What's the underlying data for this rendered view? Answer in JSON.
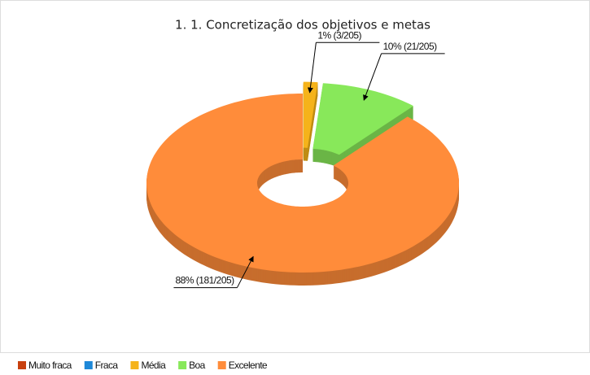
{
  "chart_data": {
    "type": "donut3d",
    "title": "1. 1. Concretização dos objetivos e metas",
    "categories": [
      "Muito fraca",
      "Fraca",
      "Média",
      "Boa",
      "Excelente"
    ],
    "values": [
      0,
      0,
      3,
      21,
      181
    ],
    "value_labels": [
      null,
      null,
      "1% (3/205)",
      "10% (21/205)",
      "88% (181/205)"
    ],
    "colors": [
      "#c8400e",
      "#1e88d8",
      "#f5b31a",
      "#88e85a",
      "#ff8c3a"
    ],
    "legend": "bottom-left"
  }
}
